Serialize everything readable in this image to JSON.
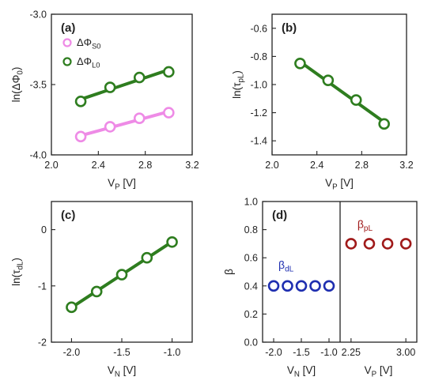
{
  "colors": {
    "green": "#2e7d1f",
    "pink": "#ee8be6",
    "blue": "#1f2fb0",
    "darkred": "#a01a1a",
    "axis": "#222222"
  },
  "chart_data": [
    {
      "id": "a",
      "type": "scatter",
      "panel_label": "(a)",
      "xlabel": "V_P [V]",
      "ylabel": "ln(ΔΦ_0)",
      "xlim": [
        2.0,
        3.2
      ],
      "ylim": [
        -4.0,
        -3.0
      ],
      "xticks": [
        2.0,
        2.4,
        2.8,
        3.2
      ],
      "xtick_labels": [
        "2.0",
        "2.4",
        "2.8",
        "3.2"
      ],
      "yticks": [
        -4.0,
        -3.5,
        -3.0
      ],
      "ytick_labels": [
        "-4.0",
        "-3.5",
        "-3.0"
      ],
      "legend_position": "top-left",
      "series": [
        {
          "name": "ΔΦ_S0",
          "color_key": "pink",
          "marker": "open-circle",
          "fit_line": true,
          "x": [
            2.25,
            2.5,
            2.75,
            3.0
          ],
          "y": [
            -3.87,
            -3.8,
            -3.74,
            -3.7
          ]
        },
        {
          "name": "ΔΦ_L0",
          "color_key": "green",
          "marker": "open-circle",
          "fit_line": true,
          "x": [
            2.25,
            2.5,
            2.75,
            3.0
          ],
          "y": [
            -3.62,
            -3.52,
            -3.45,
            -3.41
          ]
        }
      ]
    },
    {
      "id": "b",
      "type": "scatter",
      "panel_label": "(b)",
      "xlabel": "V_P [V]",
      "ylabel": "ln(τ_pL)",
      "xlim": [
        2.0,
        3.2
      ],
      "ylim": [
        -1.5,
        -0.5
      ],
      "xticks": [
        2.0,
        2.4,
        2.8,
        3.2
      ],
      "xtick_labels": [
        "2.0",
        "2.4",
        "2.8",
        "3.2"
      ],
      "yticks": [
        -1.4,
        -1.2,
        -1.0,
        -0.8,
        -0.6
      ],
      "ytick_labels": [
        "-1.4",
        "-1.2",
        "-1.0",
        "-0.8",
        "-0.6"
      ],
      "series": [
        {
          "color_key": "green",
          "marker": "open-circle",
          "fit_line": true,
          "x": [
            2.25,
            2.5,
            2.75,
            3.0
          ],
          "y": [
            -0.85,
            -0.97,
            -1.11,
            -1.28
          ]
        }
      ]
    },
    {
      "id": "c",
      "type": "scatter",
      "panel_label": "(c)",
      "xlabel": "V_N [V]",
      "ylabel": "ln(τ_dL)",
      "xlim": [
        -2.2,
        -0.8
      ],
      "ylim": [
        -2.0,
        0.5
      ],
      "xticks": [
        -2.0,
        -1.5,
        -1.0
      ],
      "xtick_labels": [
        "-2.0",
        "-1.5",
        "-1.0"
      ],
      "yticks": [
        -2,
        -1,
        0
      ],
      "ytick_labels": [
        "-2",
        "-1",
        "0"
      ],
      "series": [
        {
          "color_key": "green",
          "marker": "open-circle",
          "fit_line": true,
          "x": [
            -2.0,
            -1.75,
            -1.5,
            -1.25,
            -1.0
          ],
          "y": [
            -1.38,
            -1.1,
            -0.8,
            -0.5,
            -0.22
          ]
        }
      ]
    },
    {
      "id": "d",
      "type": "scatter",
      "panel_label": "(d)",
      "ylabel": "β",
      "ylim": [
        0.0,
        1.0
      ],
      "yticks": [
        0.0,
        0.2,
        0.4,
        0.6,
        0.8,
        1.0
      ],
      "ytick_labels": [
        "0.0",
        "0.2",
        "0.4",
        "0.6",
        "0.8",
        "1.0"
      ],
      "subpanels": [
        {
          "xlabel": "V_N [V]",
          "xlim": [
            -2.2,
            -0.8
          ],
          "xticks": [
            -2.0,
            -1.5,
            -1.0
          ],
          "xtick_labels": [
            "-2.0",
            "-1.5",
            "-1.0"
          ],
          "series": [
            {
              "name": "β_dL",
              "color_key": "blue",
              "marker": "open-circle",
              "x": [
                -2.0,
                -1.75,
                -1.5,
                -1.25,
                -1.0
              ],
              "y": [
                0.4,
                0.4,
                0.4,
                0.4,
                0.4
              ]
            }
          ]
        },
        {
          "xlabel": "V_P [V]",
          "xlim": [
            2.1,
            3.15
          ],
          "xticks": [
            2.25,
            3.0
          ],
          "xtick_labels": [
            "2.25",
            "3.00"
          ],
          "series": [
            {
              "name": "β_pL",
              "color_key": "darkred",
              "marker": "open-circle",
              "x": [
                2.25,
                2.5,
                2.75,
                3.0
              ],
              "y": [
                0.7,
                0.7,
                0.7,
                0.7
              ]
            }
          ]
        }
      ]
    }
  ]
}
